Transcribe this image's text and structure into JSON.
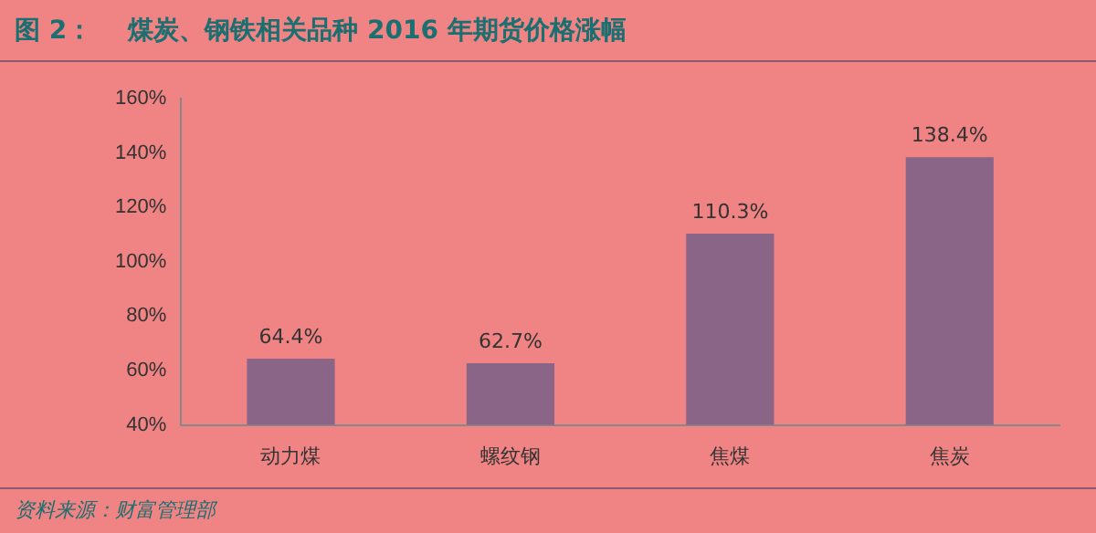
{
  "chart_data": {
    "type": "bar",
    "title": "图 2：    煤炭、钢铁相关品种 2016 年期货价格涨幅",
    "categories": [
      "动力煤",
      "螺纹钢",
      "焦煤",
      "焦炭"
    ],
    "values": [
      64.4,
      62.7,
      110.3,
      138.4
    ],
    "value_labels": [
      "64.4%",
      "62.7%",
      "110.3%",
      "138.4%"
    ],
    "color": "#8a6588",
    "ylim": [
      40,
      160
    ],
    "yticks": [
      {
        "value": 40,
        "label": "40%"
      },
      {
        "value": 60,
        "label": "60%"
      },
      {
        "value": 80,
        "label": "80%"
      },
      {
        "value": 100,
        "label": "100%"
      },
      {
        "value": 120,
        "label": "120%"
      },
      {
        "value": 140,
        "label": "140%"
      },
      {
        "value": 160,
        "label": "160%"
      }
    ],
    "grid": false,
    "legend": false,
    "annotations": [
      "资料来源：财富管理部"
    ]
  }
}
